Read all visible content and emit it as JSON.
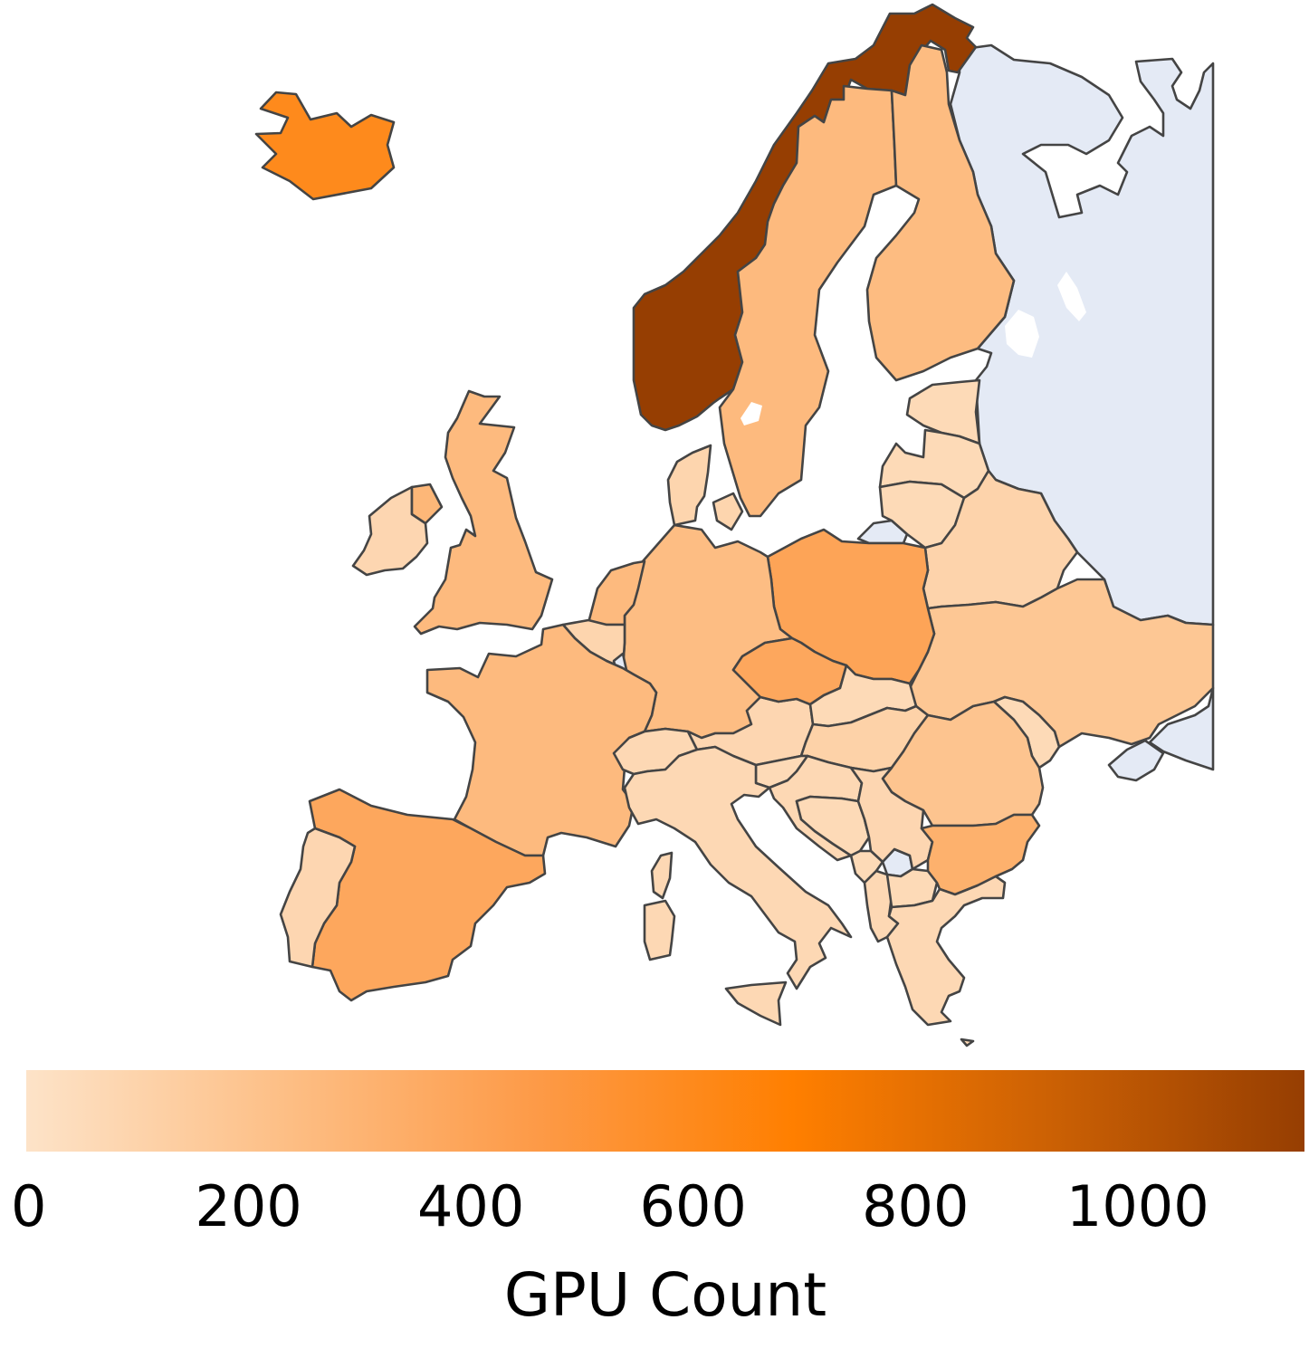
{
  "colorbar": {
    "title": "GPU Count",
    "min": 0,
    "max": 1150,
    "ticks": [
      "0",
      "200",
      "400",
      "600",
      "800",
      "1000"
    ],
    "tick_values": [
      0,
      200,
      400,
      600,
      800,
      1000
    ],
    "colors": [
      "#fde3c8",
      "#fdbf86",
      "#fd9a47",
      "#ff7f00",
      "#cc6104",
      "#963e02"
    ]
  },
  "no_data_color": "#e4eaf5",
  "chart_data": {
    "type": "choropleth",
    "region": "Europe",
    "value_label": "GPU Count",
    "countries": [
      {
        "name": "Norway",
        "value": 1150
      },
      {
        "name": "Iceland",
        "value": 600
      },
      {
        "name": "Sweden",
        "value": 260
      },
      {
        "name": "Finland",
        "value": 250
      },
      {
        "name": "United Kingdom",
        "value": 260
      },
      {
        "name": "France",
        "value": 260
      },
      {
        "name": "Germany",
        "value": 240
      },
      {
        "name": "Spain",
        "value": 380
      },
      {
        "name": "Poland",
        "value": 400
      },
      {
        "name": "Czechia",
        "value": 380
      },
      {
        "name": "Ukraine",
        "value": 180
      },
      {
        "name": "Romania",
        "value": 200
      },
      {
        "name": "Bulgaria",
        "value": 320
      },
      {
        "name": "Netherlands",
        "value": 260
      },
      {
        "name": "Northern Ireland",
        "value": 280
      },
      {
        "name": "Ireland",
        "value": 80
      },
      {
        "name": "Portugal",
        "value": 80
      },
      {
        "name": "Italy",
        "value": 70
      },
      {
        "name": "Switzerland",
        "value": 70
      },
      {
        "name": "Belgium",
        "value": 90
      },
      {
        "name": "Austria",
        "value": 80
      },
      {
        "name": "Slovakia",
        "value": 60
      },
      {
        "name": "Hungary",
        "value": 110
      },
      {
        "name": "Slovenia",
        "value": 60
      },
      {
        "name": "Croatia",
        "value": 70
      },
      {
        "name": "Bosnia and Herzegovina",
        "value": 60
      },
      {
        "name": "Serbia",
        "value": 80
      },
      {
        "name": "Montenegro",
        "value": 60
      },
      {
        "name": "Albania",
        "value": 70
      },
      {
        "name": "North Macedonia",
        "value": 60
      },
      {
        "name": "Greece",
        "value": 70
      },
      {
        "name": "Moldova",
        "value": 60
      },
      {
        "name": "Belarus",
        "value": 100
      },
      {
        "name": "Lithuania",
        "value": 60
      },
      {
        "name": "Latvia",
        "value": 60
      },
      {
        "name": "Estonia",
        "value": 60
      },
      {
        "name": "Denmark",
        "value": 90
      },
      {
        "name": "Russia",
        "value": null
      },
      {
        "name": "Kosovo",
        "value": null
      }
    ]
  }
}
